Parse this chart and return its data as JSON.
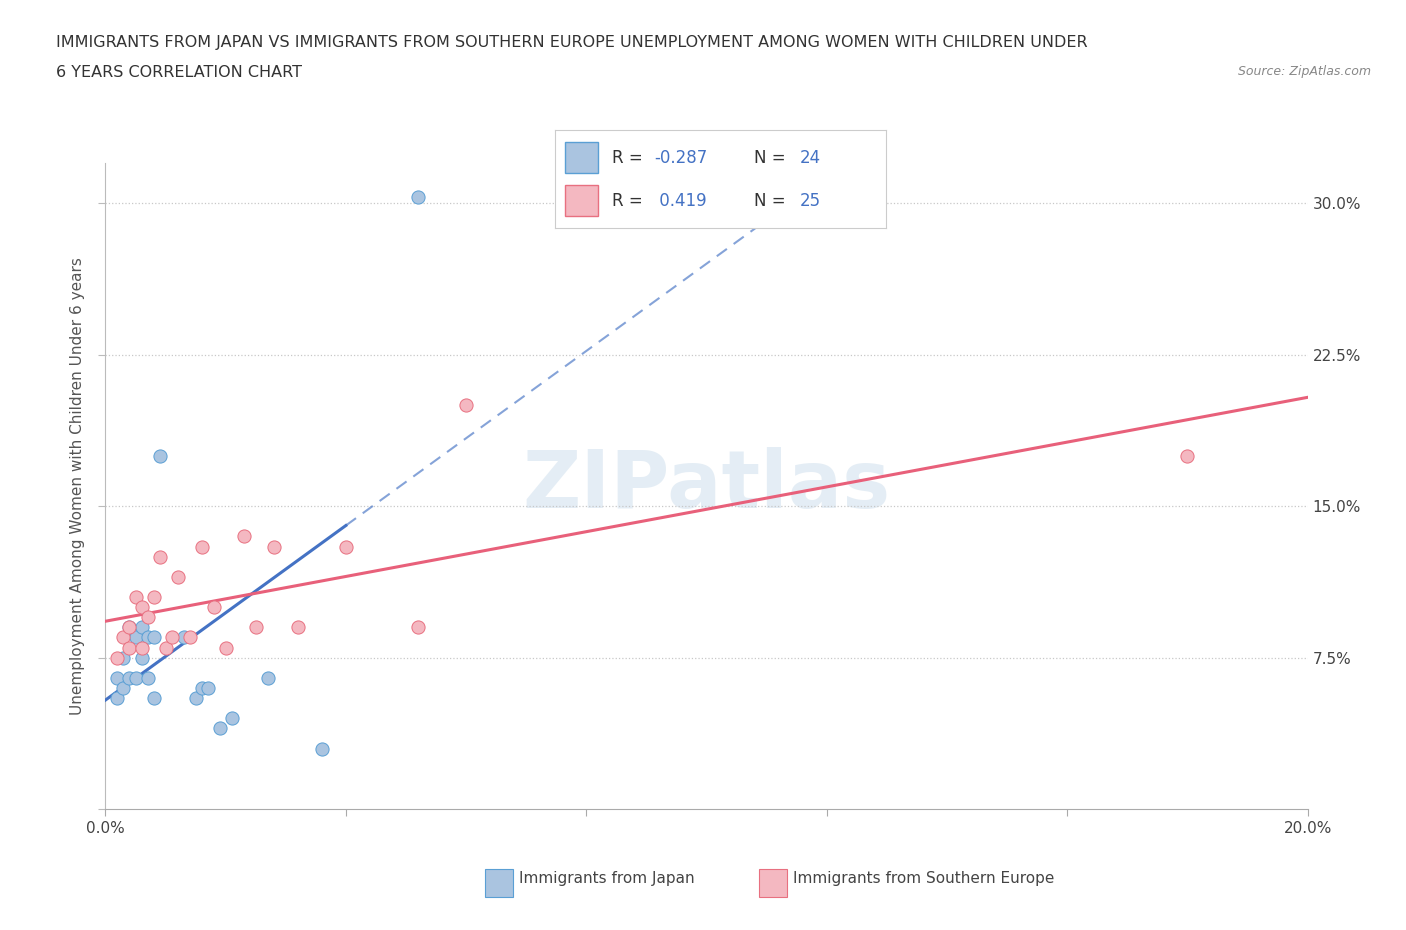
{
  "title_line1": "IMMIGRANTS FROM JAPAN VS IMMIGRANTS FROM SOUTHERN EUROPE UNEMPLOYMENT AMONG WOMEN WITH CHILDREN UNDER",
  "title_line2": "6 YEARS CORRELATION CHART",
  "source": "Source: ZipAtlas.com",
  "ylabel": "Unemployment Among Women with Children Under 6 years",
  "xlim": [
    0.0,
    0.2
  ],
  "ylim": [
    0.0,
    0.32
  ],
  "japan_color": "#aac4e0",
  "japan_edge_color": "#5a9fd4",
  "s_europe_color": "#f4b8c1",
  "s_europe_edge_color": "#e87080",
  "japan_line_color": "#4472c4",
  "s_europe_line_color": "#e8607a",
  "blue_label_color": "#4472c4",
  "grid_color": "#c8c8c8",
  "watermark_color": "#dce8f2",
  "japan_points_x": [
    0.002,
    0.002,
    0.003,
    0.003,
    0.004,
    0.004,
    0.005,
    0.005,
    0.006,
    0.006,
    0.007,
    0.007,
    0.008,
    0.008,
    0.009,
    0.013,
    0.015,
    0.016,
    0.017,
    0.019,
    0.021,
    0.027,
    0.036,
    0.052
  ],
  "japan_points_y": [
    0.065,
    0.055,
    0.075,
    0.06,
    0.09,
    0.065,
    0.085,
    0.065,
    0.09,
    0.075,
    0.085,
    0.065,
    0.085,
    0.055,
    0.175,
    0.085,
    0.055,
    0.06,
    0.06,
    0.04,
    0.045,
    0.065,
    0.03,
    0.303
  ],
  "s_europe_points_x": [
    0.002,
    0.003,
    0.004,
    0.004,
    0.005,
    0.006,
    0.006,
    0.007,
    0.008,
    0.009,
    0.01,
    0.011,
    0.012,
    0.014,
    0.016,
    0.018,
    0.02,
    0.023,
    0.025,
    0.028,
    0.032,
    0.04,
    0.052,
    0.06,
    0.18
  ],
  "s_europe_points_y": [
    0.075,
    0.085,
    0.09,
    0.08,
    0.105,
    0.1,
    0.08,
    0.095,
    0.105,
    0.125,
    0.08,
    0.085,
    0.115,
    0.085,
    0.13,
    0.1,
    0.08,
    0.135,
    0.09,
    0.13,
    0.09,
    0.13,
    0.09,
    0.2,
    0.175
  ]
}
